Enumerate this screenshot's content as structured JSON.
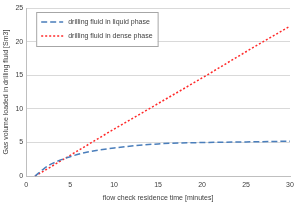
{
  "chart_data": {
    "type": "line",
    "x_label": "flow check residence time [minutes]",
    "y_label": "Gas volume loaded in drilling fluid [Sm3]",
    "xlim": [
      0,
      30
    ],
    "xticks": [
      0,
      5,
      10,
      15,
      20,
      25,
      30
    ],
    "ylim": [
      0,
      25
    ],
    "yticks": [
      0,
      5,
      10,
      15,
      20,
      25
    ],
    "grid": true,
    "legend": "upper left",
    "series": [
      {
        "name": "drilling fluid in liquid phase",
        "color": "#4a7ebb",
        "line_style": "dashed",
        "marker": "none",
        "x": [
          1,
          2,
          3,
          5,
          7,
          10,
          15,
          20,
          25,
          30
        ],
        "values": [
          0,
          1.1,
          1.9,
          2.9,
          3.6,
          4.2,
          4.8,
          5.0,
          5.1,
          5.2
        ]
      },
      {
        "name": "drilling fluid in dense phase",
        "color": "#ff2a2a",
        "line_style": "dotted",
        "marker": "none",
        "x": [
          1,
          5,
          10,
          15,
          20,
          25,
          30
        ],
        "values": [
          0,
          3.1,
          7.0,
          10.8,
          14.6,
          18.5,
          22.3
        ]
      }
    ]
  }
}
